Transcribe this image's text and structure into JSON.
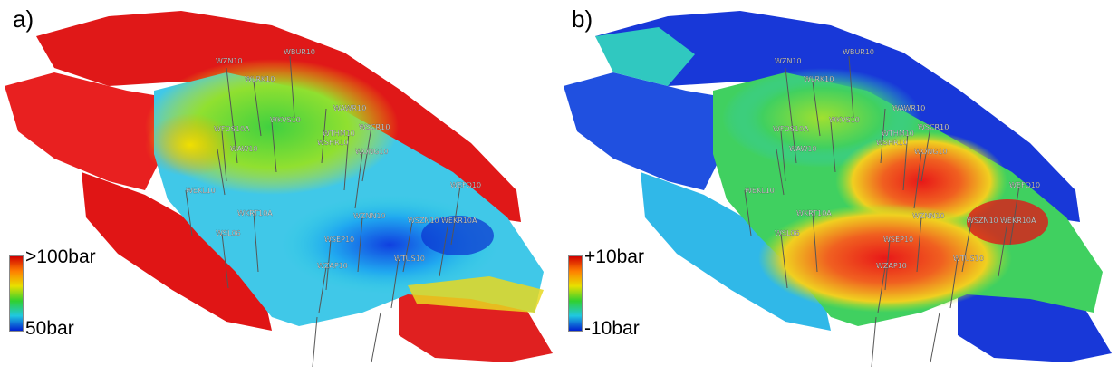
{
  "panels": [
    {
      "label": "a)",
      "colorbar": {
        "top_label": ">100bar",
        "bottom_label": "50bar",
        "colors": [
          "#d00000",
          "#ff8000",
          "#e8e000",
          "#30d030",
          "#20c8e0",
          "#0020d0"
        ]
      }
    },
    {
      "label": "b)",
      "colorbar": {
        "top_label": "+10bar",
        "bottom_label": "-10bar",
        "colors": [
          "#d00000",
          "#ff8000",
          "#e8e000",
          "#30d030",
          "#20c8e0",
          "#0020d0"
        ]
      }
    }
  ],
  "wells_a": [
    "WZN10",
    "WBUR10",
    "WLRK10",
    "WFOS10A",
    "WKVS10",
    "WAWR10",
    "WTHM10",
    "WSCR10",
    "WSHR10",
    "WONG10",
    "WAW10",
    "WEKL10",
    "WKRT10A",
    "WZNN10",
    "WSZN10",
    "WEKR10A",
    "WEFO10",
    "WSL06",
    "WSEP10",
    "WZAP10",
    "WTUS10"
  ],
  "wells_b": [
    "WZN10",
    "WBUR10",
    "WLRK10",
    "WFOS10A",
    "WKVS10",
    "WAWR10",
    "WTHM10",
    "WSCR10",
    "WSHR10",
    "WONG10",
    "WAW10",
    "WEKL10",
    "WKRT10A",
    "WZNN10",
    "WSZN10",
    "WEKR10A",
    "WEFO10",
    "WSL06",
    "WSEP10",
    "WZAP10",
    "WTUS10"
  ]
}
